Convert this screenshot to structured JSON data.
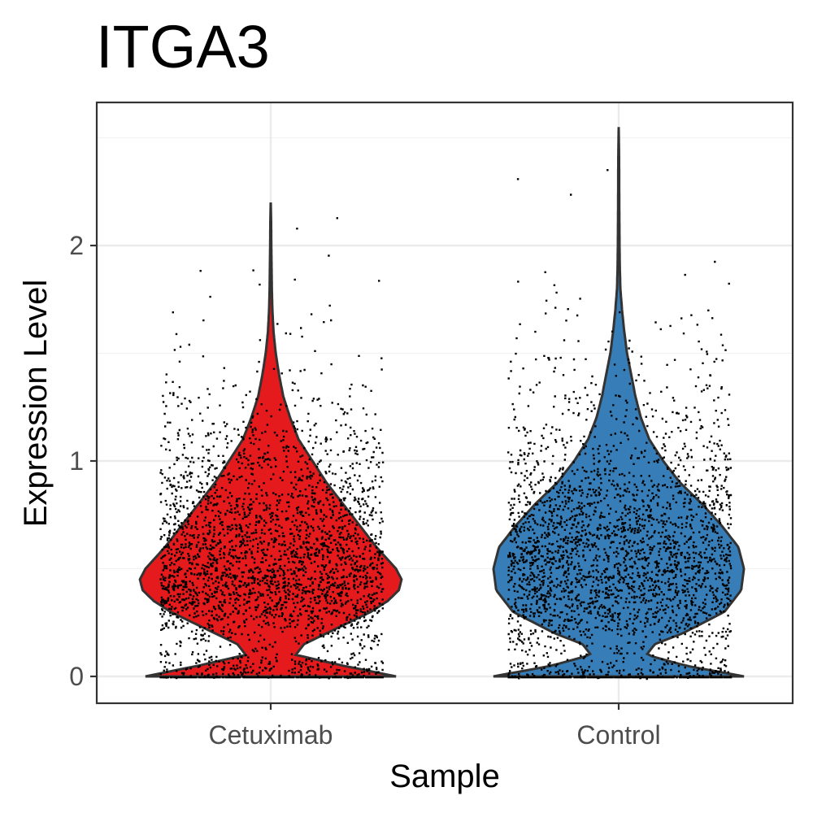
{
  "chart_data": {
    "type": "violin",
    "title": "ITGA3",
    "xlabel": "Sample",
    "ylabel": "Expression Level",
    "categories": [
      "Cetuximab",
      "Control"
    ],
    "ylim": [
      -0.12,
      2.6
    ],
    "yticks": [
      0,
      1,
      2
    ],
    "grid": true,
    "legend": "none",
    "colors": {
      "Cetuximab": "#E41A1C",
      "Control": "#377EB8",
      "points": "#000000"
    },
    "series": [
      {
        "name": "Cetuximab",
        "max": 2.2,
        "density_half_width": [
          [
            0.0,
            0.45
          ],
          [
            0.05,
            0.26
          ],
          [
            0.1,
            0.09
          ],
          [
            0.15,
            0.12
          ],
          [
            0.2,
            0.2
          ],
          [
            0.25,
            0.28
          ],
          [
            0.3,
            0.36
          ],
          [
            0.35,
            0.42
          ],
          [
            0.4,
            0.46
          ],
          [
            0.45,
            0.47
          ],
          [
            0.5,
            0.45
          ],
          [
            0.6,
            0.38
          ],
          [
            0.7,
            0.32
          ],
          [
            0.8,
            0.26
          ],
          [
            0.9,
            0.2
          ],
          [
            1.0,
            0.15
          ],
          [
            1.1,
            0.1
          ],
          [
            1.2,
            0.07
          ],
          [
            1.3,
            0.045
          ],
          [
            1.4,
            0.03
          ],
          [
            1.5,
            0.018
          ],
          [
            1.6,
            0.01
          ],
          [
            1.7,
            0.006
          ],
          [
            1.8,
            0.004
          ],
          [
            1.9,
            0.003
          ],
          [
            2.0,
            0.002
          ],
          [
            2.1,
            0.0015
          ],
          [
            2.2,
            0.0
          ]
        ]
      },
      {
        "name": "Control",
        "max": 2.55,
        "density_half_width": [
          [
            0.0,
            0.45
          ],
          [
            0.05,
            0.24
          ],
          [
            0.1,
            0.1
          ],
          [
            0.15,
            0.13
          ],
          [
            0.2,
            0.23
          ],
          [
            0.3,
            0.38
          ],
          [
            0.4,
            0.44
          ],
          [
            0.5,
            0.45
          ],
          [
            0.6,
            0.43
          ],
          [
            0.7,
            0.37
          ],
          [
            0.8,
            0.3
          ],
          [
            0.9,
            0.22
          ],
          [
            1.0,
            0.16
          ],
          [
            1.1,
            0.11
          ],
          [
            1.2,
            0.08
          ],
          [
            1.3,
            0.06
          ],
          [
            1.4,
            0.045
          ],
          [
            1.5,
            0.03
          ],
          [
            1.6,
            0.02
          ],
          [
            1.7,
            0.012
          ],
          [
            1.8,
            0.006
          ],
          [
            1.9,
            0.004
          ],
          [
            2.0,
            0.003
          ],
          [
            2.2,
            0.002
          ],
          [
            2.4,
            0.0015
          ],
          [
            2.55,
            0.0
          ]
        ]
      }
    ]
  }
}
